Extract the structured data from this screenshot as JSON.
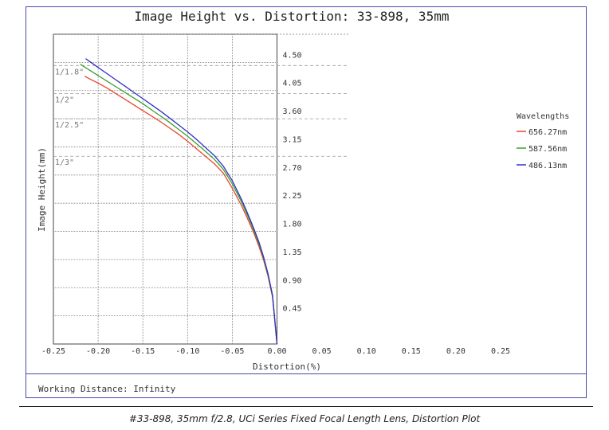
{
  "chart_data": {
    "type": "line",
    "title": "Image Height vs. Distortion: 33-898, 35mm",
    "xlabel": "Distortion(%)",
    "ylabel": "Image Height(mm)",
    "xlim": [
      -0.25,
      0.25
    ],
    "ylim": [
      0,
      4.95
    ],
    "x_ticks": [
      "-0.25",
      "-0.20",
      "-0.15",
      "-0.10",
      "-0.05",
      "0.00",
      "0.05",
      "0.10",
      "0.15",
      "0.20",
      "0.25"
    ],
    "y_ticks": [
      "0.45",
      "0.90",
      "1.35",
      "1.80",
      "2.25",
      "2.70",
      "3.15",
      "3.60",
      "4.05",
      "4.50"
    ],
    "grid": true,
    "legend": {
      "title": "Wavelengths",
      "position": "right"
    },
    "sensor_formats": [
      {
        "label": "1/1.8\"",
        "y": 4.45
      },
      {
        "label": "1/2\"",
        "y": 4.0
      },
      {
        "label": "1/2.5\"",
        "y": 3.6
      },
      {
        "label": "1/3\"",
        "y": 3.0
      }
    ],
    "series": [
      {
        "name": "656.27nm",
        "color": "#e8452e",
        "x": [
          0,
          -0.005,
          -0.01,
          -0.015,
          -0.02,
          -0.025,
          -0.03,
          -0.035,
          -0.04,
          -0.05,
          -0.06,
          -0.07,
          -0.08,
          -0.09,
          -0.1,
          -0.11,
          -0.12,
          -0.13,
          -0.14,
          -0.15,
          -0.16,
          -0.17,
          -0.18,
          -0.19,
          -0.2,
          -0.21,
          -0.215
        ],
        "y": [
          0,
          0.75,
          1.08,
          1.34,
          1.55,
          1.74,
          1.91,
          2.07,
          2.22,
          2.49,
          2.73,
          2.88,
          3.0,
          3.12,
          3.24,
          3.35,
          3.45,
          3.55,
          3.64,
          3.73,
          3.82,
          3.91,
          4.0,
          4.09,
          4.17,
          4.24,
          4.28
        ]
      },
      {
        "name": "587.56nm",
        "color": "#3aa02e",
        "x": [
          0,
          -0.005,
          -0.01,
          -0.015,
          -0.02,
          -0.025,
          -0.03,
          -0.035,
          -0.04,
          -0.05,
          -0.06,
          -0.07,
          -0.08,
          -0.09,
          -0.1,
          -0.11,
          -0.12,
          -0.13,
          -0.14,
          -0.15,
          -0.16,
          -0.17,
          -0.18,
          -0.19,
          -0.2,
          -0.21,
          -0.22
        ],
        "y": [
          0,
          0.77,
          1.1,
          1.37,
          1.59,
          1.78,
          1.96,
          2.12,
          2.28,
          2.56,
          2.79,
          2.95,
          3.08,
          3.2,
          3.32,
          3.43,
          3.54,
          3.64,
          3.74,
          3.84,
          3.93,
          4.02,
          4.11,
          4.2,
          4.29,
          4.38,
          4.47
        ]
      },
      {
        "name": "486.13nm",
        "color": "#3030c8",
        "x": [
          0,
          -0.005,
          -0.01,
          -0.015,
          -0.02,
          -0.025,
          -0.03,
          -0.035,
          -0.04,
          -0.05,
          -0.06,
          -0.07,
          -0.08,
          -0.09,
          -0.1,
          -0.11,
          -0.12,
          -0.13,
          -0.14,
          -0.15,
          -0.16,
          -0.17,
          -0.18,
          -0.19,
          -0.2,
          -0.21,
          -0.214
        ],
        "y": [
          0,
          0.78,
          1.12,
          1.39,
          1.62,
          1.81,
          1.99,
          2.16,
          2.32,
          2.61,
          2.84,
          3.01,
          3.14,
          3.27,
          3.39,
          3.5,
          3.61,
          3.72,
          3.82,
          3.92,
          4.02,
          4.12,
          4.22,
          4.32,
          4.42,
          4.52,
          4.56
        ]
      }
    ]
  },
  "working_distance": "Working Distance: Infinity",
  "caption": "#33-898, 35mm f/2.8, UCi Series Fixed Focal Length Lens, Distortion Plot"
}
